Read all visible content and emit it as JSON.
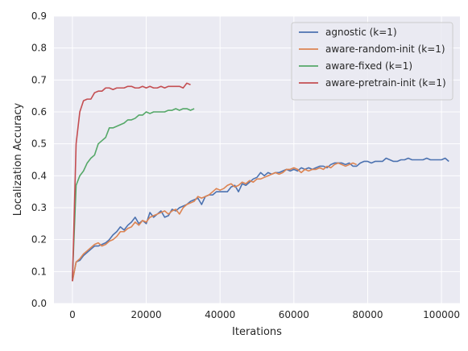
{
  "chart_data": {
    "type": "line",
    "title": "",
    "xlabel": "Iterations",
    "ylabel": "Localization Accuracy",
    "xlim": [
      -5000,
      105000
    ],
    "ylim": [
      0,
      0.9
    ],
    "xticks": [
      0,
      20000,
      40000,
      60000,
      80000,
      100000
    ],
    "xtick_labels": [
      "0",
      "20000",
      "40000",
      "60000",
      "80000",
      "100000"
    ],
    "yticks": [
      0,
      0.1,
      0.2,
      0.3,
      0.4,
      0.5,
      0.6,
      0.7,
      0.8,
      0.9
    ],
    "ytick_labels": [
      "0.0",
      "0.1",
      "0.2",
      "0.3",
      "0.4",
      "0.5",
      "0.6",
      "0.7",
      "0.8",
      "0.9"
    ],
    "grid": true,
    "legend_position": "top-right",
    "background_color": "#eaeaf2",
    "series": [
      {
        "name": "agnostic (k=1)",
        "color": "#4c72b0",
        "points": [
          [
            0,
            0.07
          ],
          [
            1000,
            0.13
          ],
          [
            2000,
            0.135
          ],
          [
            3000,
            0.15
          ],
          [
            4000,
            0.16
          ],
          [
            5000,
            0.17
          ],
          [
            6000,
            0.18
          ],
          [
            7000,
            0.18
          ],
          [
            8000,
            0.185
          ],
          [
            9000,
            0.19
          ],
          [
            10000,
            0.2
          ],
          [
            11000,
            0.215
          ],
          [
            12000,
            0.225
          ],
          [
            13000,
            0.24
          ],
          [
            14000,
            0.23
          ],
          [
            15000,
            0.245
          ],
          [
            16000,
            0.255
          ],
          [
            17000,
            0.27
          ],
          [
            18000,
            0.25
          ],
          [
            19000,
            0.26
          ],
          [
            20000,
            0.25
          ],
          [
            21000,
            0.285
          ],
          [
            22000,
            0.27
          ],
          [
            23000,
            0.28
          ],
          [
            24000,
            0.29
          ],
          [
            25000,
            0.27
          ],
          [
            26000,
            0.275
          ],
          [
            27000,
            0.295
          ],
          [
            28000,
            0.29
          ],
          [
            29000,
            0.3
          ],
          [
            30000,
            0.305
          ],
          [
            31000,
            0.31
          ],
          [
            32000,
            0.32
          ],
          [
            33000,
            0.325
          ],
          [
            34000,
            0.33
          ],
          [
            35000,
            0.31
          ],
          [
            36000,
            0.335
          ],
          [
            37000,
            0.34
          ],
          [
            38000,
            0.34
          ],
          [
            39000,
            0.35
          ],
          [
            40000,
            0.35
          ],
          [
            41000,
            0.35
          ],
          [
            42000,
            0.35
          ],
          [
            43000,
            0.365
          ],
          [
            44000,
            0.37
          ],
          [
            45000,
            0.35
          ],
          [
            46000,
            0.375
          ],
          [
            47000,
            0.37
          ],
          [
            48000,
            0.38
          ],
          [
            49000,
            0.39
          ],
          [
            50000,
            0.395
          ],
          [
            51000,
            0.41
          ],
          [
            52000,
            0.4
          ],
          [
            53000,
            0.41
          ],
          [
            54000,
            0.405
          ],
          [
            55000,
            0.41
          ],
          [
            56000,
            0.41
          ],
          [
            57000,
            0.415
          ],
          [
            58000,
            0.42
          ],
          [
            59000,
            0.415
          ],
          [
            60000,
            0.42
          ],
          [
            61000,
            0.415
          ],
          [
            62000,
            0.425
          ],
          [
            63000,
            0.42
          ],
          [
            64000,
            0.425
          ],
          [
            65000,
            0.42
          ],
          [
            66000,
            0.425
          ],
          [
            67000,
            0.43
          ],
          [
            68000,
            0.43
          ],
          [
            69000,
            0.425
          ],
          [
            70000,
            0.435
          ],
          [
            71000,
            0.44
          ],
          [
            72000,
            0.44
          ],
          [
            73000,
            0.44
          ],
          [
            74000,
            0.435
          ],
          [
            75000,
            0.44
          ],
          [
            76000,
            0.43
          ],
          [
            77000,
            0.43
          ],
          [
            78000,
            0.44
          ],
          [
            79000,
            0.445
          ],
          [
            80000,
            0.445
          ],
          [
            81000,
            0.44
          ],
          [
            82000,
            0.445
          ],
          [
            83000,
            0.445
          ],
          [
            84000,
            0.445
          ],
          [
            85000,
            0.455
          ],
          [
            86000,
            0.45
          ],
          [
            87000,
            0.445
          ],
          [
            88000,
            0.445
          ],
          [
            89000,
            0.45
          ],
          [
            90000,
            0.45
          ],
          [
            91000,
            0.455
          ],
          [
            92000,
            0.45
          ],
          [
            93000,
            0.45
          ],
          [
            94000,
            0.45
          ],
          [
            95000,
            0.45
          ],
          [
            96000,
            0.455
          ],
          [
            97000,
            0.45
          ],
          [
            98000,
            0.45
          ],
          [
            99000,
            0.45
          ],
          [
            100000,
            0.45
          ],
          [
            101000,
            0.455
          ],
          [
            102000,
            0.445
          ]
        ]
      },
      {
        "name": "aware-random-init (k=1)",
        "color": "#dd8452",
        "points": [
          [
            0,
            0.07
          ],
          [
            1000,
            0.13
          ],
          [
            2000,
            0.14
          ],
          [
            3000,
            0.155
          ],
          [
            4000,
            0.165
          ],
          [
            5000,
            0.175
          ],
          [
            6000,
            0.185
          ],
          [
            7000,
            0.19
          ],
          [
            8000,
            0.18
          ],
          [
            9000,
            0.185
          ],
          [
            10000,
            0.195
          ],
          [
            11000,
            0.2
          ],
          [
            12000,
            0.21
          ],
          [
            13000,
            0.225
          ],
          [
            14000,
            0.225
          ],
          [
            15000,
            0.235
          ],
          [
            16000,
            0.24
          ],
          [
            17000,
            0.255
          ],
          [
            18000,
            0.245
          ],
          [
            19000,
            0.26
          ],
          [
            20000,
            0.255
          ],
          [
            21000,
            0.27
          ],
          [
            22000,
            0.275
          ],
          [
            23000,
            0.28
          ],
          [
            24000,
            0.285
          ],
          [
            25000,
            0.29
          ],
          [
            26000,
            0.28
          ],
          [
            27000,
            0.29
          ],
          [
            28000,
            0.295
          ],
          [
            29000,
            0.28
          ],
          [
            30000,
            0.3
          ],
          [
            31000,
            0.31
          ],
          [
            32000,
            0.315
          ],
          [
            33000,
            0.32
          ],
          [
            34000,
            0.335
          ],
          [
            35000,
            0.33
          ],
          [
            36000,
            0.335
          ],
          [
            37000,
            0.34
          ],
          [
            38000,
            0.35
          ],
          [
            39000,
            0.36
          ],
          [
            40000,
            0.355
          ],
          [
            41000,
            0.36
          ],
          [
            42000,
            0.37
          ],
          [
            43000,
            0.375
          ],
          [
            44000,
            0.365
          ],
          [
            45000,
            0.37
          ],
          [
            46000,
            0.38
          ],
          [
            47000,
            0.375
          ],
          [
            48000,
            0.385
          ],
          [
            49000,
            0.38
          ],
          [
            50000,
            0.39
          ],
          [
            51000,
            0.39
          ],
          [
            52000,
            0.395
          ],
          [
            53000,
            0.4
          ],
          [
            54000,
            0.405
          ],
          [
            55000,
            0.41
          ],
          [
            56000,
            0.405
          ],
          [
            57000,
            0.41
          ],
          [
            58000,
            0.42
          ],
          [
            59000,
            0.42
          ],
          [
            60000,
            0.425
          ],
          [
            61000,
            0.42
          ],
          [
            62000,
            0.41
          ],
          [
            63000,
            0.42
          ],
          [
            64000,
            0.415
          ],
          [
            65000,
            0.42
          ],
          [
            66000,
            0.42
          ],
          [
            67000,
            0.425
          ],
          [
            68000,
            0.42
          ],
          [
            69000,
            0.43
          ],
          [
            70000,
            0.425
          ],
          [
            71000,
            0.435
          ],
          [
            72000,
            0.44
          ],
          [
            73000,
            0.435
          ],
          [
            74000,
            0.43
          ],
          [
            75000,
            0.435
          ],
          [
            76000,
            0.44
          ],
          [
            77000,
            0.435
          ]
        ]
      },
      {
        "name": "aware-fixed (k=1)",
        "color": "#55a868",
        "points": [
          [
            0,
            0.08
          ],
          [
            1000,
            0.37
          ],
          [
            2000,
            0.4
          ],
          [
            3000,
            0.415
          ],
          [
            4000,
            0.44
          ],
          [
            5000,
            0.455
          ],
          [
            6000,
            0.465
          ],
          [
            7000,
            0.5
          ],
          [
            8000,
            0.51
          ],
          [
            9000,
            0.52
          ],
          [
            10000,
            0.55
          ],
          [
            11000,
            0.55
          ],
          [
            12000,
            0.555
          ],
          [
            13000,
            0.56
          ],
          [
            14000,
            0.565
          ],
          [
            15000,
            0.575
          ],
          [
            16000,
            0.575
          ],
          [
            17000,
            0.58
          ],
          [
            18000,
            0.59
          ],
          [
            19000,
            0.59
          ],
          [
            20000,
            0.6
          ],
          [
            21000,
            0.595
          ],
          [
            22000,
            0.6
          ],
          [
            23000,
            0.6
          ],
          [
            24000,
            0.6
          ],
          [
            25000,
            0.6
          ],
          [
            26000,
            0.605
          ],
          [
            27000,
            0.605
          ],
          [
            28000,
            0.61
          ],
          [
            29000,
            0.605
          ],
          [
            30000,
            0.61
          ],
          [
            31000,
            0.61
          ],
          [
            32000,
            0.605
          ],
          [
            33000,
            0.61
          ]
        ]
      },
      {
        "name": "aware-pretrain-init (k=1)",
        "color": "#c44e52",
        "points": [
          [
            0,
            0.07
          ],
          [
            1000,
            0.5
          ],
          [
            2000,
            0.6
          ],
          [
            3000,
            0.635
          ],
          [
            4000,
            0.64
          ],
          [
            5000,
            0.64
          ],
          [
            6000,
            0.66
          ],
          [
            7000,
            0.665
          ],
          [
            8000,
            0.665
          ],
          [
            9000,
            0.675
          ],
          [
            10000,
            0.675
          ],
          [
            11000,
            0.67
          ],
          [
            12000,
            0.675
          ],
          [
            13000,
            0.675
          ],
          [
            14000,
            0.675
          ],
          [
            15000,
            0.68
          ],
          [
            16000,
            0.68
          ],
          [
            17000,
            0.675
          ],
          [
            18000,
            0.675
          ],
          [
            19000,
            0.68
          ],
          [
            20000,
            0.675
          ],
          [
            21000,
            0.68
          ],
          [
            22000,
            0.675
          ],
          [
            23000,
            0.675
          ],
          [
            24000,
            0.68
          ],
          [
            25000,
            0.675
          ],
          [
            26000,
            0.68
          ],
          [
            27000,
            0.68
          ],
          [
            28000,
            0.68
          ],
          [
            29000,
            0.68
          ],
          [
            30000,
            0.675
          ],
          [
            31000,
            0.69
          ],
          [
            32000,
            0.685
          ]
        ]
      }
    ]
  }
}
